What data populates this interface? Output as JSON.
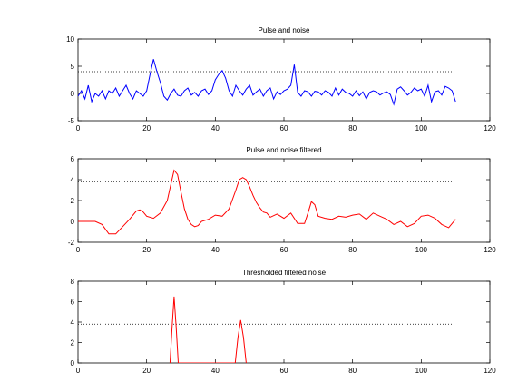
{
  "chart_data": [
    {
      "type": "line",
      "title": "Pulse and noise",
      "xlabel": "",
      "ylabel": "",
      "xlim": [
        0,
        120
      ],
      "ylim": [
        -5,
        10
      ],
      "xticks": [
        0,
        20,
        40,
        60,
        80,
        100,
        120
      ],
      "yticks": [
        -5,
        0,
        5,
        10
      ],
      "threshold": 4,
      "series": [
        {
          "color": "#0000ff",
          "x": [
            0,
            1,
            2,
            3,
            4,
            5,
            6,
            7,
            8,
            9,
            10,
            11,
            12,
            13,
            14,
            15,
            16,
            17,
            18,
            19,
            20,
            21,
            22,
            23,
            24,
            25,
            26,
            27,
            28,
            29,
            30,
            31,
            32,
            33,
            34,
            35,
            36,
            37,
            38,
            39,
            40,
            41,
            42,
            43,
            44,
            45,
            46,
            47,
            48,
            49,
            50,
            51,
            52,
            53,
            54,
            55,
            56,
            57,
            58,
            59,
            60,
            61,
            62,
            63,
            64,
            65,
            66,
            67,
            68,
            69,
            70,
            71,
            72,
            73,
            74,
            75,
            76,
            77,
            78,
            79,
            80,
            81,
            82,
            83,
            84,
            85,
            86,
            87,
            88,
            89,
            90,
            91,
            92,
            93,
            94,
            95,
            96,
            97,
            98,
            99,
            100,
            101,
            102,
            103,
            104,
            105,
            106,
            107,
            108,
            109,
            110
          ],
          "values": [
            -0.5,
            0.5,
            -1.0,
            1.5,
            -1.5,
            0,
            -0.5,
            0.5,
            -1.0,
            0.5,
            0,
            1.0,
            -0.5,
            0.5,
            1.5,
            0,
            -1.0,
            0.5,
            0,
            -0.5,
            0.5,
            3.5,
            6.3,
            4.0,
            2.0,
            -0.5,
            -1.2,
            0,
            0.8,
            -0.3,
            -0.5,
            0.5,
            1.0,
            -0.3,
            0.2,
            -0.5,
            0.5,
            0.8,
            -0.2,
            0.5,
            2.5,
            3.5,
            4.2,
            2.8,
            0.5,
            -0.5,
            1.5,
            0.5,
            -0.3,
            0.8,
            1.5,
            -0.3,
            0.3,
            0.8,
            -0.5,
            0.5,
            1.0,
            -1.0,
            0.3,
            -0.2,
            0.5,
            0.8,
            1.5,
            5.3,
            0.2,
            -0.5,
            0.5,
            0.3,
            -0.5,
            0.4,
            0.3,
            -0.3,
            0.5,
            0.2,
            -0.5,
            1.0,
            -0.3,
            0.8,
            0.2,
            0,
            -0.5,
            0.5,
            -0.4,
            0.3,
            -1.0,
            0.2,
            0.5,
            0.3,
            -0.3,
            0.1,
            0.3,
            -0.2,
            -2.0,
            0.8,
            1.2,
            0.5,
            -0.3,
            0.2,
            1.0,
            0.5,
            0.8,
            -0.5,
            1.5,
            -1.5,
            0.3,
            0.5,
            -0.3,
            1.3,
            1.0,
            0.5,
            -1.5
          ]
        }
      ]
    },
    {
      "type": "line",
      "title": "Pulse and noise filtered",
      "xlabel": "",
      "ylabel": "",
      "xlim": [
        0,
        120
      ],
      "ylim": [
        -2,
        6
      ],
      "xticks": [
        0,
        20,
        40,
        60,
        80,
        100,
        120
      ],
      "yticks": [
        -2,
        0,
        2,
        4,
        6
      ],
      "threshold": 3.8,
      "series": [
        {
          "color": "#ff0000",
          "x": [
            0,
            3,
            5,
            7,
            9,
            11,
            13,
            15,
            17,
            18,
            19,
            20,
            22,
            24,
            26,
            27,
            28,
            29,
            30,
            31,
            32,
            33,
            34,
            35,
            36,
            38,
            40,
            42,
            44,
            46,
            47,
            48,
            49,
            50,
            51,
            52,
            53,
            54,
            55,
            56,
            58,
            60,
            62,
            64,
            66,
            67,
            68,
            69,
            70,
            72,
            74,
            76,
            78,
            80,
            82,
            84,
            86,
            88,
            90,
            92,
            94,
            96,
            98,
            100,
            102,
            104,
            106,
            108,
            110
          ],
          "values": [
            0,
            0,
            0,
            -0.3,
            -1.2,
            -1.2,
            -0.5,
            0.2,
            1.0,
            1.1,
            0.9,
            0.5,
            0.3,
            0.8,
            2.0,
            3.5,
            4.9,
            4.5,
            2.8,
            1.2,
            0.2,
            -0.3,
            -0.5,
            -0.4,
            0,
            0.2,
            0.6,
            0.5,
            1.2,
            3.0,
            4.0,
            4.2,
            4.0,
            3.3,
            2.5,
            1.8,
            1.3,
            0.9,
            0.8,
            0.4,
            0.7,
            0.3,
            0.8,
            -0.2,
            -0.2,
            0.8,
            1.9,
            1.6,
            0.5,
            0.3,
            0.2,
            0.5,
            0.4,
            0.6,
            0.7,
            0.2,
            0.8,
            0.5,
            0.2,
            -0.3,
            0,
            -0.5,
            -0.2,
            0.5,
            0.6,
            0.3,
            -0.3,
            -0.6,
            0.2
          ]
        }
      ]
    },
    {
      "type": "line",
      "title": "Thresholded filtered noise",
      "xlabel": "",
      "ylabel": "",
      "xlim": [
        0,
        120
      ],
      "ylim": [
        0,
        8
      ],
      "xticks": [
        0,
        20,
        40,
        60,
        80,
        100,
        120
      ],
      "yticks": [
        0,
        2,
        4,
        6,
        8
      ],
      "threshold": 3.8,
      "series": [
        {
          "color": "#ff0000",
          "x": [
            26.8,
            27.4,
            28.0,
            28.6,
            29.2,
            45.8,
            46.6,
            47.4,
            48.2,
            49.0
          ],
          "values": [
            0,
            3.5,
            6.5,
            3.5,
            0,
            0,
            2.5,
            4.2,
            2.5,
            0
          ]
        }
      ]
    }
  ]
}
